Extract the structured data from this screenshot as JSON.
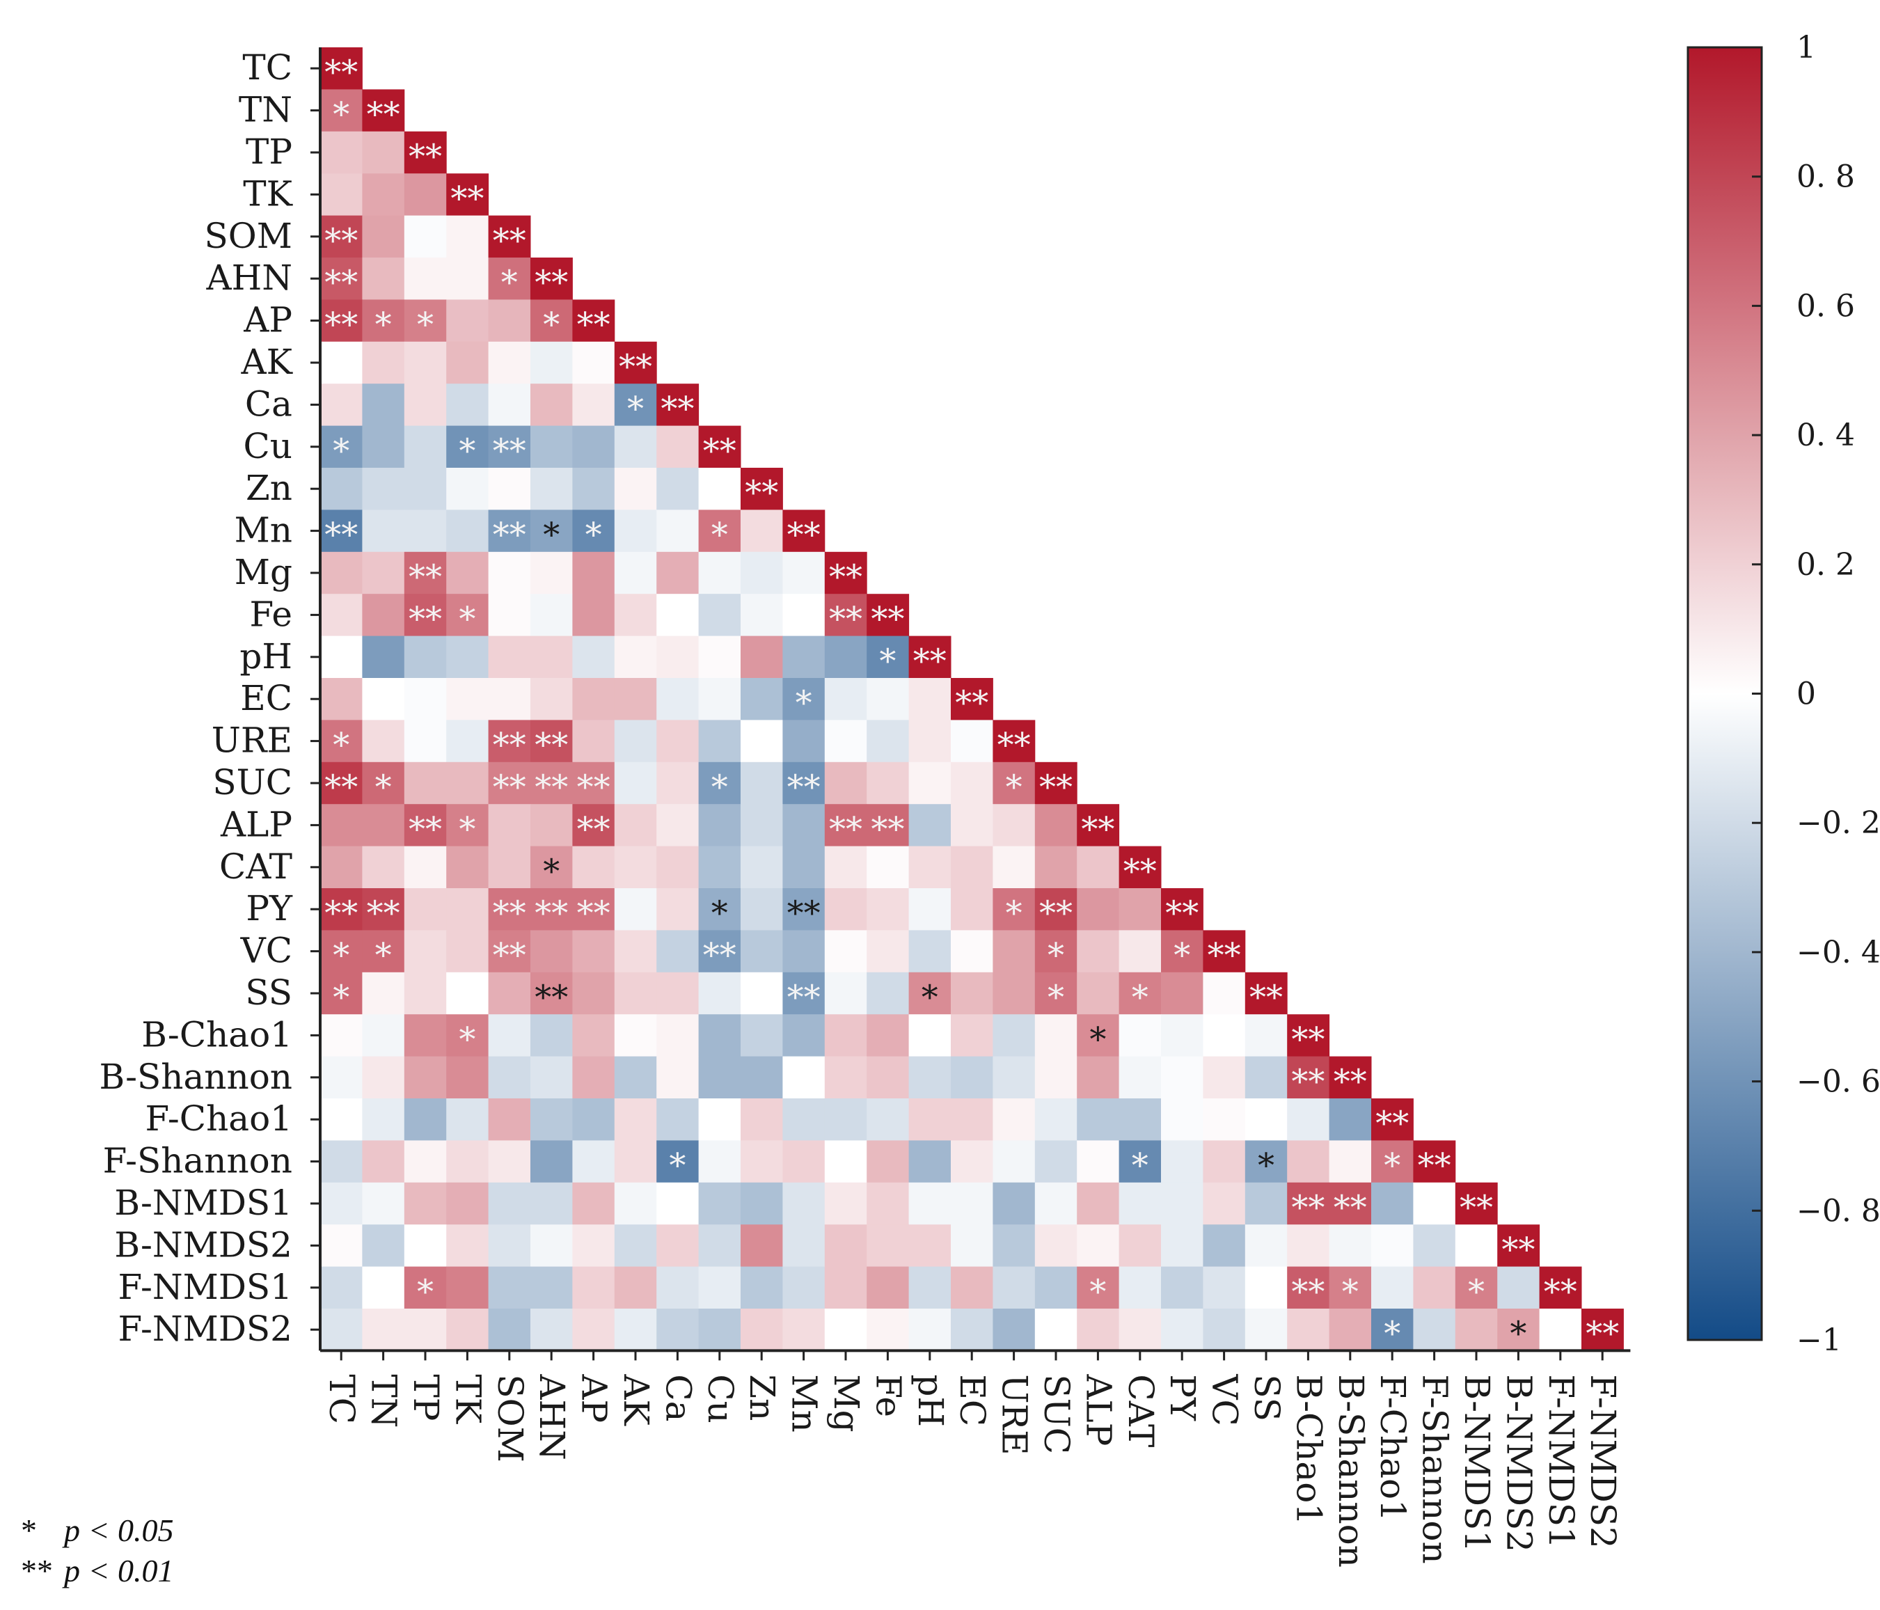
{
  "chart_data": {
    "type": "heatmap",
    "title": "",
    "variables": [
      "TC",
      "TN",
      "TP",
      "TK",
      "SOM",
      "AHN",
      "AP",
      "AK",
      "Ca",
      "Cu",
      "Zn",
      "Mn",
      "Mg",
      "Fe",
      "pH",
      "EC",
      "URE",
      "SUC",
      "ALP",
      "CAT",
      "PY",
      "VC",
      "SS",
      "B-Chao1",
      "B-Shannon",
      "F-Chao1",
      "F-Shannon",
      "B-NMDS1",
      "B-NMDS2",
      "F-NMDS1",
      "F-NMDS2"
    ],
    "matrix_shape": "lower-triangle",
    "values": [
      [
        1.0
      ],
      [
        0.6,
        1.0
      ],
      [
        0.25,
        0.3,
        1.0
      ],
      [
        0.22,
        0.38,
        0.45,
        1.0
      ],
      [
        0.8,
        0.4,
        -0.02,
        0.05,
        1.0
      ],
      [
        0.72,
        0.3,
        0.05,
        0.05,
        0.62,
        1.0
      ],
      [
        0.8,
        0.62,
        0.55,
        0.28,
        0.32,
        0.65,
        1.0
      ],
      [
        0.0,
        0.2,
        0.15,
        0.3,
        0.05,
        -0.08,
        0.02,
        1.0
      ],
      [
        0.15,
        -0.4,
        0.15,
        -0.2,
        -0.05,
        0.3,
        0.1,
        -0.6,
        1.0
      ],
      [
        -0.55,
        -0.4,
        -0.2,
        -0.6,
        -0.55,
        -0.35,
        -0.4,
        -0.15,
        0.2,
        1.0
      ],
      [
        -0.3,
        -0.2,
        -0.2,
        -0.05,
        0.02,
        -0.15,
        -0.3,
        0.05,
        -0.2,
        0.0,
        1.0
      ],
      [
        -0.7,
        -0.15,
        -0.15,
        -0.2,
        -0.55,
        -0.5,
        -0.65,
        -0.1,
        -0.05,
        0.6,
        0.15,
        1.0
      ],
      [
        0.3,
        0.25,
        0.65,
        0.35,
        0.02,
        0.05,
        0.45,
        -0.05,
        0.35,
        -0.05,
        -0.1,
        -0.05,
        1.0
      ],
      [
        0.15,
        0.45,
        0.7,
        0.55,
        0.02,
        -0.05,
        0.45,
        0.15,
        0.0,
        -0.2,
        -0.05,
        0.0,
        0.75,
        1.0
      ],
      [
        0.0,
        -0.55,
        -0.3,
        -0.25,
        0.2,
        0.2,
        -0.15,
        0.05,
        0.08,
        0.02,
        0.45,
        -0.4,
        -0.5,
        -0.65,
        1.0
      ],
      [
        0.3,
        0.0,
        -0.02,
        0.05,
        0.05,
        0.15,
        0.3,
        0.3,
        -0.1,
        -0.05,
        -0.35,
        -0.55,
        -0.1,
        -0.05,
        0.1,
        1.0
      ],
      [
        0.6,
        0.15,
        -0.02,
        -0.1,
        0.7,
        0.75,
        0.25,
        -0.15,
        0.2,
        -0.3,
        0.0,
        -0.45,
        -0.02,
        -0.15,
        0.1,
        -0.02,
        1.0
      ],
      [
        0.85,
        0.65,
        0.3,
        0.3,
        0.55,
        0.55,
        0.55,
        -0.1,
        0.15,
        -0.55,
        -0.2,
        -0.6,
        0.3,
        0.2,
        0.05,
        0.1,
        0.6,
        1.0
      ],
      [
        0.5,
        0.5,
        0.7,
        0.55,
        0.25,
        0.3,
        0.75,
        0.2,
        0.1,
        -0.4,
        -0.2,
        -0.4,
        0.65,
        0.65,
        -0.3,
        0.1,
        0.15,
        0.5,
        1.0
      ],
      [
        0.4,
        0.2,
        0.05,
        0.4,
        0.25,
        0.45,
        0.2,
        0.15,
        0.2,
        -0.35,
        -0.15,
        -0.4,
        0.1,
        0.02,
        0.15,
        0.2,
        0.05,
        0.4,
        0.25,
        1.0
      ],
      [
        0.85,
        0.8,
        0.2,
        0.2,
        0.6,
        0.6,
        0.6,
        -0.05,
        0.15,
        -0.45,
        -0.2,
        -0.5,
        0.2,
        0.15,
        -0.05,
        0.2,
        0.6,
        0.8,
        0.45,
        0.4,
        1.0
      ],
      [
        0.65,
        0.65,
        0.15,
        0.2,
        0.55,
        0.45,
        0.35,
        0.15,
        -0.25,
        -0.55,
        -0.3,
        -0.4,
        0.02,
        0.1,
        -0.2,
        0.02,
        0.4,
        0.65,
        0.25,
        0.1,
        0.65,
        1.0
      ],
      [
        0.65,
        0.05,
        0.15,
        0.0,
        0.35,
        0.5,
        0.4,
        0.2,
        0.2,
        -0.1,
        0.0,
        -0.55,
        -0.05,
        -0.2,
        0.5,
        0.3,
        0.4,
        0.6,
        0.3,
        0.55,
        0.5,
        0.02,
        1.0
      ],
      [
        0.02,
        -0.05,
        0.5,
        0.55,
        -0.1,
        -0.25,
        0.3,
        0.02,
        0.05,
        -0.4,
        -0.25,
        -0.4,
        0.25,
        0.35,
        0.0,
        0.2,
        -0.2,
        0.05,
        0.5,
        -0.02,
        -0.05,
        0.0,
        -0.05,
        1.0
      ],
      [
        -0.05,
        0.1,
        0.4,
        0.5,
        -0.2,
        -0.15,
        0.35,
        -0.3,
        0.05,
        -0.4,
        -0.4,
        0.0,
        0.2,
        0.25,
        -0.2,
        -0.25,
        -0.15,
        0.05,
        0.4,
        -0.05,
        -0.02,
        0.1,
        -0.25,
        0.8,
        1.0
      ],
      [
        0.0,
        -0.1,
        -0.4,
        -0.15,
        0.35,
        -0.3,
        -0.35,
        0.15,
        -0.25,
        0.0,
        0.2,
        -0.2,
        -0.2,
        -0.15,
        0.2,
        0.2,
        0.05,
        -0.1,
        -0.3,
        -0.3,
        -0.02,
        0.02,
        0.0,
        -0.1,
        -0.5,
        1.0
      ],
      [
        -0.2,
        0.25,
        0.05,
        0.15,
        0.1,
        -0.5,
        -0.1,
        0.15,
        -0.7,
        -0.05,
        0.15,
        0.2,
        0.0,
        0.3,
        -0.4,
        0.1,
        -0.05,
        -0.2,
        0.02,
        -0.65,
        -0.1,
        0.2,
        -0.5,
        0.25,
        0.05,
        0.6,
        1.0
      ],
      [
        -0.1,
        -0.05,
        0.3,
        0.35,
        -0.2,
        -0.2,
        0.3,
        -0.05,
        0.0,
        -0.3,
        -0.35,
        -0.15,
        0.1,
        0.2,
        -0.05,
        -0.05,
        -0.4,
        -0.05,
        0.3,
        -0.1,
        -0.1,
        0.15,
        -0.3,
        0.75,
        0.75,
        -0.4,
        0.0,
        1.0
      ],
      [
        0.02,
        -0.25,
        0.0,
        0.15,
        -0.15,
        -0.05,
        0.1,
        -0.2,
        0.2,
        -0.2,
        0.5,
        -0.15,
        0.25,
        0.2,
        0.2,
        -0.05,
        -0.3,
        0.1,
        0.05,
        0.2,
        -0.1,
        -0.35,
        -0.05,
        0.1,
        -0.05,
        -0.02,
        -0.2,
        0.0,
        1.0
      ],
      [
        -0.2,
        0.0,
        0.6,
        0.55,
        -0.3,
        -0.3,
        0.2,
        0.3,
        -0.15,
        -0.1,
        -0.3,
        -0.2,
        0.25,
        0.4,
        -0.2,
        0.3,
        -0.2,
        -0.3,
        0.55,
        -0.1,
        -0.25,
        -0.15,
        0.0,
        0.7,
        0.55,
        -0.1,
        0.25,
        0.55,
        -0.2,
        1.0
      ],
      [
        -0.15,
        0.1,
        0.1,
        0.2,
        -0.35,
        -0.15,
        0.15,
        -0.1,
        -0.25,
        -0.3,
        0.2,
        0.15,
        0.0,
        0.05,
        -0.05,
        -0.2,
        -0.4,
        0.0,
        0.2,
        0.1,
        -0.1,
        -0.2,
        -0.05,
        0.2,
        0.35,
        -0.65,
        -0.2,
        0.3,
        0.4,
        0.0,
        1.0
      ]
    ],
    "significance": [
      [
        "**"
      ],
      [
        "*",
        "**"
      ],
      [
        "",
        "",
        "**"
      ],
      [
        "",
        "",
        "",
        "**"
      ],
      [
        "**",
        "",
        "",
        "",
        "**"
      ],
      [
        "**",
        "",
        "",
        "",
        "*",
        "**"
      ],
      [
        "**",
        "*",
        "*",
        "",
        "",
        "*",
        "**"
      ],
      [
        "",
        "",
        "",
        "",
        "",
        "",
        "",
        "**"
      ],
      [
        "",
        "",
        "",
        "",
        "",
        "",
        "",
        "*",
        "**"
      ],
      [
        "*",
        "",
        "",
        "*",
        "**",
        "",
        "",
        "",
        "",
        "**"
      ],
      [
        "",
        "",
        "",
        "",
        "",
        "",
        "",
        "",
        "",
        "",
        "**"
      ],
      [
        "**",
        "",
        "",
        "",
        "**",
        "*",
        "*",
        "",
        "",
        "*",
        "",
        "**"
      ],
      [
        "",
        "",
        "**",
        "",
        "",
        "",
        "",
        "",
        "",
        "",
        "",
        "",
        "**"
      ],
      [
        "",
        "",
        "**",
        "*",
        "",
        "",
        "",
        "",
        "",
        "",
        "",
        "",
        "**",
        "**"
      ],
      [
        "",
        "",
        "",
        "",
        "",
        "",
        "",
        "",
        "",
        "",
        "",
        "",
        "",
        "*",
        "**"
      ],
      [
        "",
        "",
        "",
        "",
        "",
        "",
        "",
        "",
        "",
        "",
        "",
        "*",
        "",
        "",
        "",
        "**"
      ],
      [
        "*",
        "",
        "",
        "",
        "**",
        "**",
        "",
        "",
        "",
        "",
        "",
        "",
        "",
        "",
        "",
        "",
        "**"
      ],
      [
        "**",
        "*",
        "",
        "",
        "**",
        "**",
        "**",
        "",
        "",
        "*",
        "",
        "**",
        "",
        "",
        "",
        "",
        "*",
        "**"
      ],
      [
        "",
        "",
        "**",
        "*",
        "",
        "",
        "**",
        "",
        "",
        "",
        "",
        "",
        "**",
        "**",
        "",
        "",
        "",
        "",
        "**"
      ],
      [
        "",
        "",
        "",
        "",
        "",
        "*",
        "",
        "",
        "",
        "",
        "",
        "",
        "",
        "",
        "",
        "",
        "",
        "",
        "",
        "**"
      ],
      [
        "**",
        "**",
        "",
        "",
        "**",
        "**",
        "**",
        "",
        "",
        "*",
        "",
        "**",
        "",
        "",
        "",
        "",
        "*",
        "**",
        "",
        "",
        "**"
      ],
      [
        "*",
        "*",
        "",
        "",
        "**",
        "",
        "",
        "",
        "",
        "**",
        "",
        "",
        "",
        "",
        "",
        "",
        "",
        "*",
        "",
        "",
        "*",
        "**"
      ],
      [
        "*",
        "",
        "",
        "",
        "",
        "**",
        "",
        "",
        "",
        "",
        "",
        "**",
        "",
        "",
        "*",
        "",
        "",
        "*",
        "",
        "*",
        "",
        "",
        "**"
      ],
      [
        "",
        "",
        "",
        "*",
        "",
        "",
        "",
        "",
        "",
        "",
        "",
        "",
        "",
        "",
        "",
        "",
        "",
        "",
        "*",
        "",
        "",
        "",
        "",
        "**"
      ],
      [
        "",
        "",
        "",
        "",
        "",
        "",
        "",
        "",
        "",
        "",
        "",
        "",
        "",
        "",
        "",
        "",
        "",
        "",
        "",
        "",
        "",
        "",
        "",
        "**",
        "**"
      ],
      [
        "",
        "",
        "",
        "",
        "",
        "",
        "",
        "",
        "",
        "",
        "",
        "",
        "",
        "",
        "",
        "",
        "",
        "",
        "",
        "",
        "",
        "",
        "",
        "",
        "",
        "**"
      ],
      [
        "",
        "",
        "",
        "",
        "",
        "",
        "",
        "",
        "*",
        "",
        "",
        "",
        "",
        "",
        "",
        "",
        "",
        "",
        "",
        "*",
        "",
        "",
        "*",
        "",
        "",
        "*",
        "**"
      ],
      [
        "",
        "",
        "",
        "",
        "",
        "",
        "",
        "",
        "",
        "",
        "",
        "",
        "",
        "",
        "",
        "",
        "",
        "",
        "",
        "",
        "",
        "",
        "",
        "**",
        "**",
        "",
        "",
        "**"
      ],
      [
        "",
        "",
        "",
        "",
        "",
        "",
        "",
        "",
        "",
        "",
        "",
        "",
        "",
        "",
        "",
        "",
        "",
        "",
        "",
        "",
        "",
        "",
        "",
        "",
        "",
        "",
        "",
        "",
        "**"
      ],
      [
        "",
        "",
        "*",
        "",
        "",
        "",
        "",
        "",
        "",
        "",
        "",
        "",
        "",
        "",
        "",
        "",
        "",
        "",
        "*",
        "",
        "",
        "",
        "",
        "**",
        "*",
        "",
        "",
        "*",
        "",
        "**"
      ],
      [
        "",
        "",
        "",
        "",
        "",
        "",
        "",
        "",
        "",
        "",
        "",
        "",
        "",
        "",
        "",
        "",
        "",
        "",
        "",
        "",
        "",
        "",
        "",
        "",
        "",
        "*",
        "",
        "",
        "*",
        "",
        "**"
      ]
    ],
    "colorbar": {
      "range": [
        -1,
        1
      ],
      "ticks": [
        "1",
        "0. 8",
        "0. 6",
        "0. 4",
        "0. 2",
        "0",
        "−0. 2",
        "−0. 4",
        "−0. 6",
        "−0. 8",
        "−1"
      ],
      "colors": {
        "high": "#b2182b",
        "mid": "#ffffff",
        "low": "#134b87"
      }
    },
    "legend": [
      {
        "symbol": "*",
        "label": "p < 0.05"
      },
      {
        "symbol": "**",
        "label": "p < 0.01"
      }
    ]
  }
}
